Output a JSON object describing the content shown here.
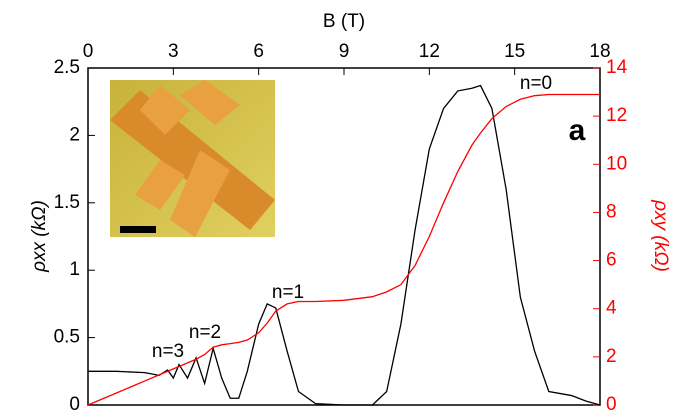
{
  "chart_data": {
    "type": "line",
    "x_label": "B (T)",
    "y_label": "ρxx (kΩ)",
    "y2_label": "ρxy (kΩ)",
    "x": [
      0,
      1,
      2,
      2.5,
      2.8,
      3,
      3.2,
      3.5,
      3.8,
      4.1,
      4.4,
      4.7,
      5,
      5.3,
      5.6,
      6,
      6.3,
      6.6,
      7,
      7.4,
      8,
      9,
      10,
      10.5,
      11,
      11.5,
      12,
      12.5,
      13,
      13.5,
      13.8,
      14.2,
      14.7,
      15.2,
      15.7,
      16.2,
      17,
      17.5,
      18
    ],
    "series": [
      {
        "color": "#000000",
        "values": [
          0.25,
          0.25,
          0.24,
          0.22,
          0.26,
          0.2,
          0.3,
          0.2,
          0.35,
          0.16,
          0.42,
          0.2,
          0.05,
          0.05,
          0.25,
          0.6,
          0.75,
          0.72,
          0.4,
          0.1,
          0.01,
          0,
          0,
          0.1,
          0.6,
          1.3,
          1.9,
          2.2,
          2.33,
          2.35,
          2.37,
          2.2,
          1.6,
          0.8,
          0.4,
          0.1,
          0.07,
          0.03,
          0
        ]
      },
      {
        "color": "#ff0000",
        "axis": "y2",
        "values": [
          0,
          0.5,
          1.0,
          1.25,
          1.4,
          1.5,
          1.6,
          1.75,
          1.9,
          2.1,
          2.4,
          2.5,
          2.55,
          2.6,
          2.7,
          3.0,
          3.4,
          3.9,
          4.2,
          4.3,
          4.3,
          4.35,
          4.5,
          4.7,
          5.0,
          5.8,
          7.0,
          8.4,
          9.7,
          10.8,
          11.3,
          11.9,
          12.4,
          12.7,
          12.85,
          12.9,
          12.9,
          12.9,
          12.9
        ]
      }
    ],
    "xlim": [
      0,
      18
    ],
    "xticks": [
      0,
      3,
      6,
      9,
      12,
      15,
      18
    ],
    "ylim": [
      0,
      2.5
    ],
    "yticks": [
      0,
      0.5,
      1,
      1.5,
      2,
      2.5
    ],
    "y2lim": [
      0,
      14
    ],
    "y2ticks": [
      0,
      2,
      4,
      6,
      8,
      10,
      12,
      14
    ],
    "annotations": [
      "n=0",
      "n=1",
      "n=2",
      "n=3",
      "a"
    ]
  }
}
